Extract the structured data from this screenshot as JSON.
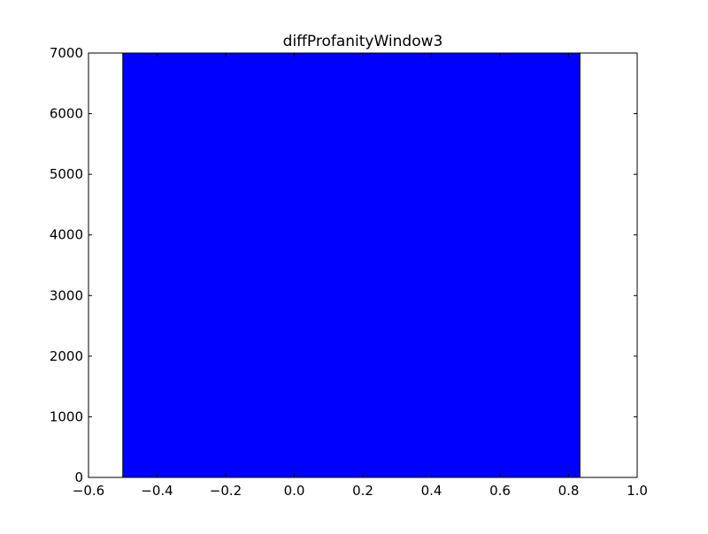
{
  "chart_data": {
    "type": "bar",
    "title": "diffProfanityWindow3",
    "xlabel": "",
    "ylabel": "",
    "xlim": [
      -0.6,
      1.0
    ],
    "ylim": [
      0,
      7000
    ],
    "xticks": [
      -0.6,
      -0.4,
      -0.2,
      0.0,
      0.2,
      0.4,
      0.6,
      0.8,
      1.0
    ],
    "xtick_labels": [
      "−0.6",
      "−0.4",
      "−0.2",
      "0.0",
      "0.2",
      "0.4",
      "0.6",
      "0.8",
      "1.0"
    ],
    "yticks": [
      0,
      1000,
      2000,
      3000,
      4000,
      5000,
      6000,
      7000
    ],
    "ytick_labels": [
      "0",
      "1000",
      "2000",
      "3000",
      "4000",
      "5000",
      "6000",
      "7000"
    ],
    "bars": [
      {
        "x_start": -0.5,
        "x_end": 0.833,
        "value": 7000
      }
    ],
    "grid": false,
    "legend": "none",
    "colors": {
      "bar_fill": "#0000ff",
      "bar_edge": "#000000",
      "axes": "#000000",
      "background": "#ffffff"
    }
  }
}
